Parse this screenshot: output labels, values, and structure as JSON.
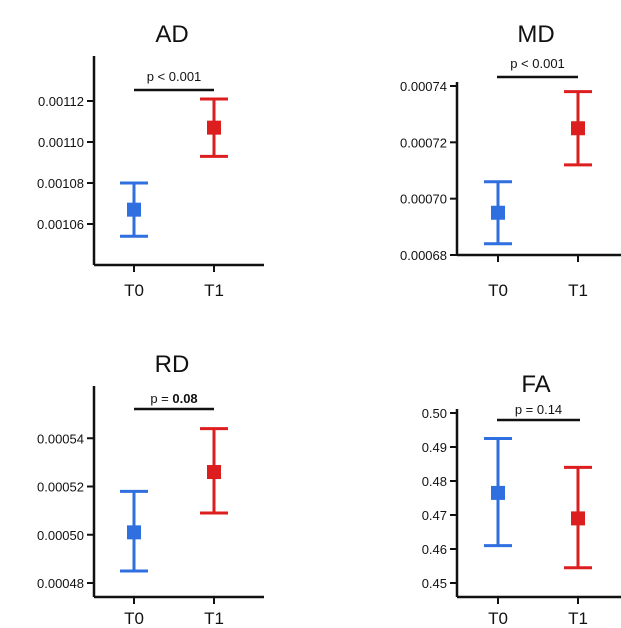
{
  "chart_data": [
    {
      "type": "scatter",
      "title": "AD",
      "categories": [
        "T0",
        "T1"
      ],
      "series": [
        {
          "values": [
            0.001067,
            0.001107
          ],
          "err_low": [
            0.001054,
            0.001093
          ],
          "err_high": [
            0.00108,
            0.001121
          ]
        }
      ],
      "yticks": [
        "0.00106",
        "0.00108",
        "0.00110",
        "0.00112"
      ],
      "ytick_values": [
        0.00106,
        0.00108,
        0.0011,
        0.00112
      ],
      "ylim": [
        0.00104,
        0.00114
      ],
      "annotation": "p < 0.001",
      "annotation_bold": "",
      "colors": [
        "#2f6fe0",
        "#dd1e1e"
      ]
    },
    {
      "type": "scatter",
      "title": "MD",
      "categories": [
        "T0",
        "T1"
      ],
      "series": [
        {
          "values": [
            0.000695,
            0.000725
          ],
          "err_low": [
            0.000684,
            0.000712
          ],
          "err_high": [
            0.000706,
            0.000738
          ]
        }
      ],
      "yticks": [
        "0.00068",
        "0.00070",
        "0.00072",
        "0.00074"
      ],
      "ytick_values": [
        0.00068,
        0.0007,
        0.00072,
        0.00074
      ],
      "ylim": [
        0.00068,
        0.00074
      ],
      "annotation": "p < 0.001",
      "annotation_bold": "",
      "colors": [
        "#2f6fe0",
        "#dd1e1e"
      ]
    },
    {
      "type": "scatter",
      "title": "RD",
      "categories": [
        "T0",
        "T1"
      ],
      "series": [
        {
          "values": [
            0.000501,
            0.000526
          ],
          "err_low": [
            0.000485,
            0.000509
          ],
          "err_high": [
            0.000518,
            0.000544
          ]
        }
      ],
      "yticks": [
        "0.00048",
        "0.00050",
        "0.00052",
        "0.00054"
      ],
      "ytick_values": [
        0.00048,
        0.0005,
        0.00052,
        0.00054
      ],
      "ylim": [
        0.00048,
        0.00056
      ],
      "annotation": "p  =",
      "annotation_bold": "0.08",
      "colors": [
        "#2f6fe0",
        "#dd1e1e"
      ]
    },
    {
      "type": "scatter",
      "title": "FA",
      "categories": [
        "T0",
        "T1"
      ],
      "series": [
        {
          "values": [
            0.4765,
            0.469
          ],
          "err_low": [
            0.461,
            0.4545
          ],
          "err_high": [
            0.4925,
            0.484
          ]
        }
      ],
      "yticks": [
        "0.45",
        "0.46",
        "0.47",
        "0.48",
        "0.49",
        "0.50"
      ],
      "ytick_values": [
        0.45,
        0.46,
        0.47,
        0.48,
        0.49,
        0.5
      ],
      "ylim": [
        0.45,
        0.5
      ],
      "annotation": "p = 0.14",
      "annotation_bold": "",
      "colors": [
        "#2f6fe0",
        "#dd1e1e"
      ]
    }
  ]
}
